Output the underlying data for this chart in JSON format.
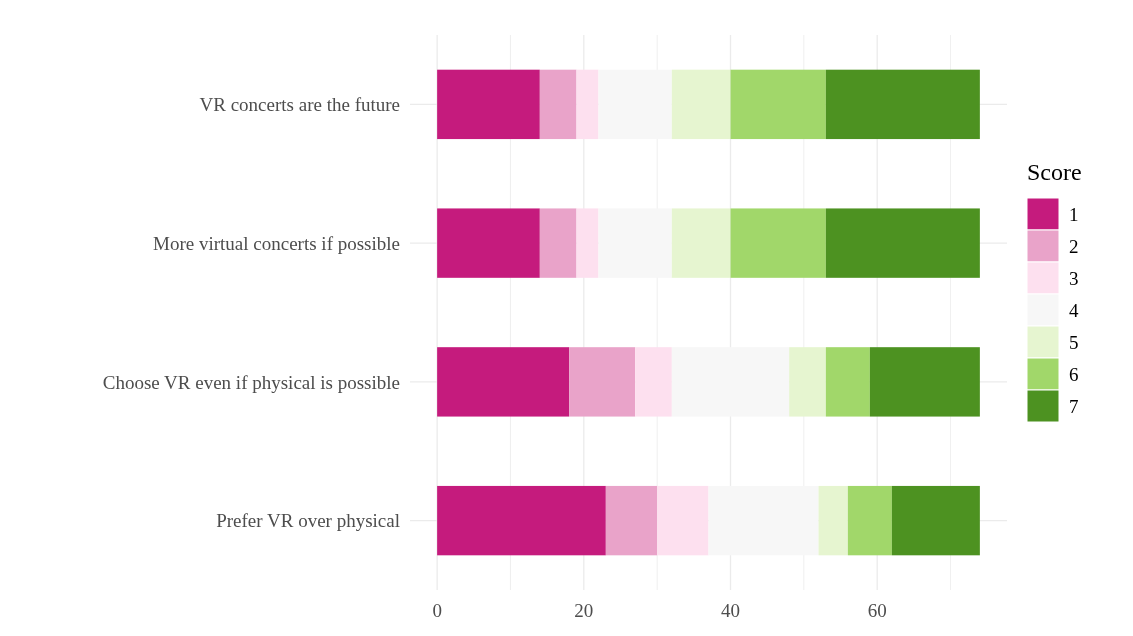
{
  "chart_data": {
    "type": "bar",
    "orientation": "horizontal",
    "stacked": true,
    "legend_title": "Score",
    "legend": "right",
    "grid": true,
    "categories": [
      "VR concerts are the future",
      "More virtual concerts if possible",
      "Choose VR even if physical is possible",
      "Prefer VR over physical"
    ],
    "xlim": [
      -3.7,
      77.7
    ],
    "xticks": [
      0,
      {
        "value": 10,
        "label": null
      },
      20,
      {
        "value": 30,
        "label": null
      },
      40,
      {
        "value": 50,
        "label": null
      },
      60,
      {
        "value": 70,
        "label": null
      }
    ],
    "series": [
      {
        "name": "1",
        "color": "#c51b7d",
        "values": [
          14,
          14,
          18,
          23
        ]
      },
      {
        "name": "2",
        "color": "#e9a3c9",
        "values": [
          5,
          5,
          9,
          7
        ]
      },
      {
        "name": "3",
        "color": "#fde0ef",
        "values": [
          3,
          3,
          5,
          7
        ]
      },
      {
        "name": "4",
        "color": "#f7f7f7",
        "values": [
          10,
          10,
          16,
          15
        ]
      },
      {
        "name": "5",
        "color": "#e6f5d0",
        "values": [
          8,
          8,
          5,
          4
        ]
      },
      {
        "name": "6",
        "color": "#a1d76a",
        "values": [
          13,
          13,
          6,
          6
        ]
      },
      {
        "name": "7",
        "color": "#4d9221",
        "values": [
          21,
          21,
          15,
          12
        ]
      }
    ]
  }
}
